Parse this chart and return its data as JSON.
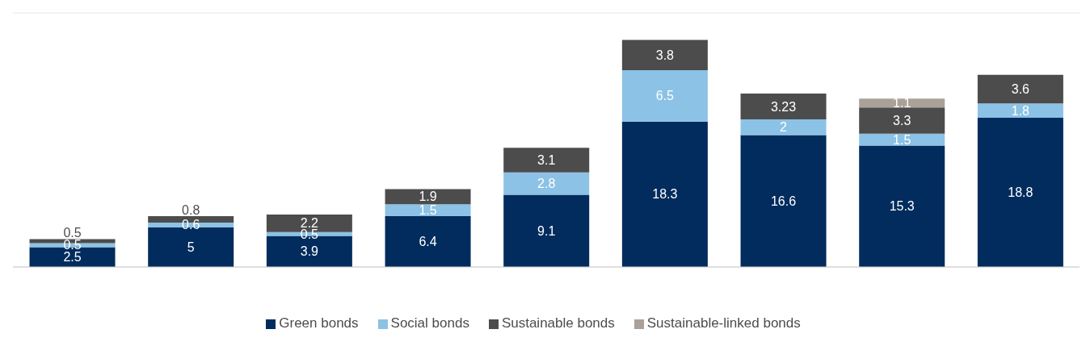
{
  "chart_data": {
    "type": "bar",
    "stacked": true,
    "data_labels": true,
    "categories": [
      null,
      null,
      null,
      null,
      null,
      null,
      null,
      null,
      null
    ],
    "series": [
      {
        "name": "Green bonds",
        "color": "#012c5d",
        "values": [
          2.5,
          5,
          3.9,
          6.4,
          9.1,
          18.3,
          16.6,
          15.3,
          18.8
        ]
      },
      {
        "name": "Social bonds",
        "color": "#8bc2e5",
        "values": [
          0.5,
          0.6,
          0.5,
          1.5,
          2.8,
          6.5,
          2,
          1.5,
          1.8
        ]
      },
      {
        "name": "Sustainable bonds",
        "color": "#4c4c4c",
        "values": [
          0.5,
          0.8,
          2.2,
          1.9,
          3.1,
          3.8,
          3.23,
          3.3,
          3.6
        ]
      },
      {
        "name": "Sustainable-linked bonds",
        "color": "#aaa198",
        "values": [
          null,
          null,
          null,
          null,
          null,
          null,
          null,
          1.1,
          null
        ]
      }
    ],
    "grid": "y",
    "legend": "bottom"
  }
}
